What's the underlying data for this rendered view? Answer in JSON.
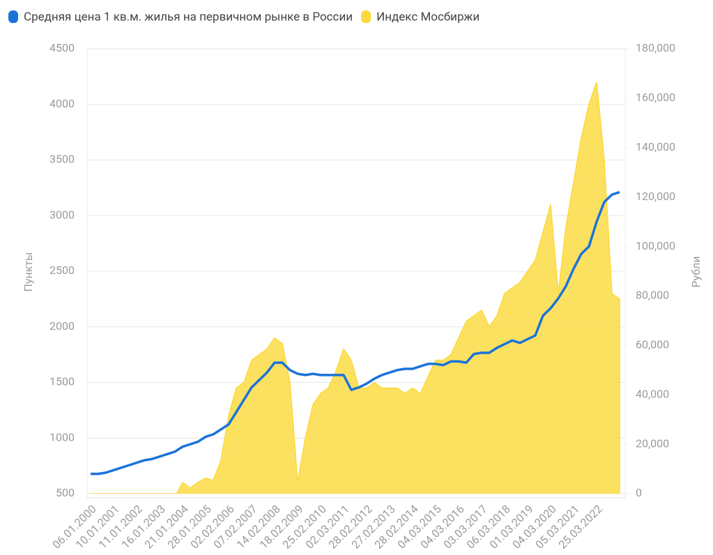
{
  "chart_data": {
    "type": "area-line",
    "categories": [
      "06.01.2000",
      null,
      null,
      "10.01.2001",
      null,
      null,
      "11.01.2002",
      null,
      null,
      "16.01.2003",
      null,
      null,
      "21.01.2004",
      null,
      null,
      "28.01.2005",
      null,
      null,
      "02.02.2006",
      null,
      null,
      "07.02.2007",
      null,
      null,
      "14.02.2008",
      null,
      null,
      "18.02.2009",
      null,
      null,
      "25.02.2010",
      null,
      null,
      "02.03.2011",
      null,
      null,
      "28.02.2012",
      null,
      null,
      "27.02.2013",
      null,
      null,
      "28.02.2014",
      null,
      null,
      "04.03.2015",
      null,
      null,
      "04.03.2016",
      null,
      null,
      "03.03.2017",
      null,
      null,
      "06.03.2018",
      null,
      null,
      "01.03.2019",
      null,
      null,
      "04.03.2020",
      null,
      null,
      "05.03.2021",
      null,
      null,
      "25.03.2022",
      null,
      null,
      null
    ],
    "series": [
      {
        "name": "Средняя цена 1 кв.м. жилья на первичном рынке в России",
        "color": "#1a73d9",
        "axis": "y2",
        "values": [
          8000,
          8000,
          8500,
          9500,
          10500,
          11500,
          12500,
          13500,
          14000,
          15000,
          16000,
          17000,
          19000,
          20000,
          21000,
          23000,
          24000,
          26000,
          28000,
          33000,
          38000,
          43000,
          46000,
          49000,
          53000,
          53000,
          50000,
          48500,
          48000,
          48500,
          48000,
          48000,
          48000,
          48000,
          42000,
          43000,
          44500,
          46500,
          48000,
          49000,
          50000,
          50500,
          50500,
          51500,
          52500,
          52500,
          52000,
          53500,
          53500,
          53000,
          56500,
          57000,
          57000,
          59000,
          60500,
          62000,
          61000,
          62500,
          64000,
          72000,
          75000,
          79000,
          84000,
          91000,
          97000,
          100000,
          110000,
          118000,
          121000,
          122000
        ]
      },
      {
        "name": "Индекс Мосбиржи",
        "color": "#fbd93a",
        "values": [
          150,
          180,
          200,
          220,
          250,
          300,
          350,
          380,
          380,
          350,
          400,
          470,
          600,
          550,
          600,
          640,
          620,
          800,
          1200,
          1450,
          1500,
          1700,
          1750,
          1800,
          1900,
          1850,
          1500,
          600,
          1000,
          1300,
          1400,
          1450,
          1600,
          1800,
          1700,
          1450,
          1450,
          1500,
          1450,
          1450,
          1450,
          1400,
          1450,
          1400,
          1550,
          1700,
          1700,
          1750,
          1900,
          2050,
          2100,
          2150,
          2000,
          2100,
          2300,
          2350,
          2400,
          2500,
          2600,
          2850,
          3100,
          2300,
          2900,
          3300,
          3700,
          4000,
          4200,
          3500,
          2300,
          2250
        ]
      }
    ],
    "ylabel": "Пункты",
    "y2label": "Рубли",
    "ylim": [
      500,
      4500
    ],
    "yticks": [
      500,
      1000,
      1500,
      2000,
      2500,
      3000,
      3500,
      4000,
      4500
    ],
    "y2lim": [
      0,
      180000
    ],
    "y2ticks": [
      0,
      {
        "value": 20000,
        "label": "20,000"
      },
      {
        "value": 40000,
        "label": "40,000"
      },
      {
        "value": 60000,
        "label": "60,000"
      },
      {
        "value": 80000,
        "label": "80,000"
      },
      {
        "value": 100000,
        "label": "100,000"
      },
      {
        "value": 120000,
        "label": "120,000"
      },
      {
        "value": 140000,
        "label": "140,000"
      },
      {
        "value": 160000,
        "label": "160,000"
      },
      {
        "value": 180000,
        "label": "180,000"
      }
    ],
    "grid": true
  }
}
